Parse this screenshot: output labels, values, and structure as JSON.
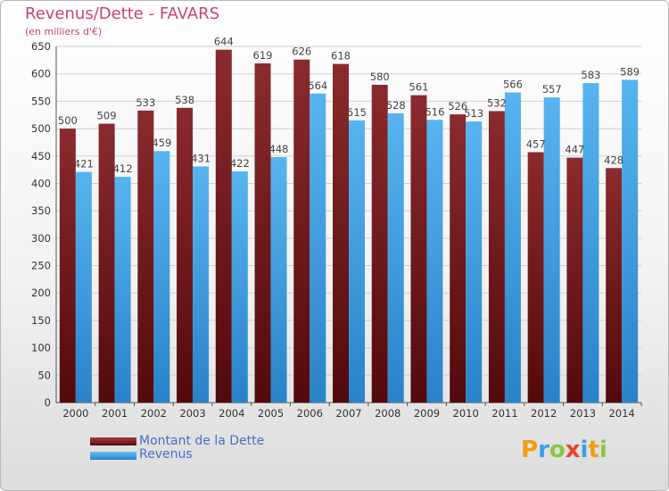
{
  "header": {
    "title": "Revenus/Dette - FAVARS",
    "subtitle": "(en milliers d'€)"
  },
  "legend": {
    "dette_label": "Montant de la Dette",
    "revenus_label": "Revenus"
  },
  "logo": {
    "text": "Proxiti",
    "letters": [
      {
        "ch": "P",
        "color": "#f39c12"
      },
      {
        "ch": "r",
        "color": "#3aa0e0"
      },
      {
        "ch": "o",
        "color": "#8dc63f"
      },
      {
        "ch": "x",
        "color": "#e8442a"
      },
      {
        "ch": "i",
        "color": "#3aa0e0"
      },
      {
        "ch": "t",
        "color": "#f39c12"
      },
      {
        "ch": "i",
        "color": "#8dc63f"
      }
    ]
  },
  "colors": {
    "dette": "#7a1e22",
    "revenus": "#3da0e4",
    "title": "#c8446e",
    "legend_text": "#4a6fc8"
  },
  "chart_data": {
    "type": "bar",
    "title": "Revenus/Dette - FAVARS",
    "subtitle": "(en milliers d'€)",
    "categories": [
      "2000",
      "2001",
      "2002",
      "2003",
      "2004",
      "2005",
      "2006",
      "2007",
      "2008",
      "2009",
      "2010",
      "2011",
      "2012",
      "2013",
      "2014"
    ],
    "series": [
      {
        "name": "Montant de la Dette",
        "values": [
          500,
          509,
          533,
          538,
          644,
          619,
          626,
          618,
          580,
          561,
          526,
          532,
          457,
          447,
          428
        ]
      },
      {
        "name": "Revenus",
        "values": [
          421,
          412,
          459,
          431,
          422,
          448,
          564,
          515,
          528,
          516,
          513,
          566,
          557,
          583,
          589
        ]
      }
    ],
    "ylim": [
      0,
      650
    ],
    "yticks": [
      0,
      50,
      100,
      150,
      200,
      250,
      300,
      350,
      400,
      450,
      500,
      550,
      600,
      650
    ],
    "grid": true,
    "legend_position": "bottom-left"
  }
}
